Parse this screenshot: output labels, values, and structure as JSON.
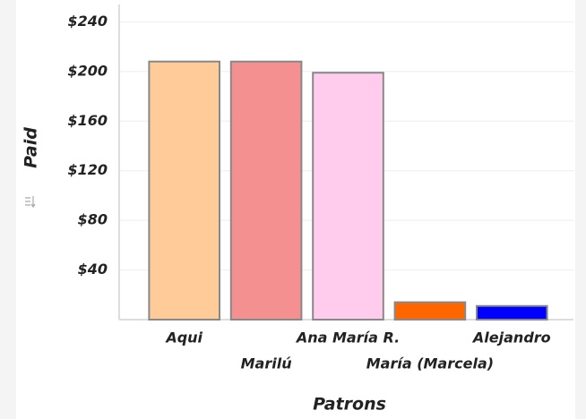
{
  "chart_data": {
    "type": "bar",
    "x_label": "Patrons",
    "y_label": "Paid",
    "categories": [
      "Aqui",
      "Marilú",
      "Ana María R.",
      "María (Marcela)",
      "Alejandro"
    ],
    "values": [
      208,
      208,
      199,
      14,
      11
    ],
    "colors": [
      "#ffcc99",
      "#f49090",
      "#ffccee",
      "#ff6600",
      "#0000ff"
    ],
    "ylim": [
      0,
      254
    ],
    "yticks": [
      {
        "value": 40,
        "label": "$40"
      },
      {
        "value": 80,
        "label": "$80"
      },
      {
        "value": 120,
        "label": "$120"
      },
      {
        "value": 160,
        "label": "$160"
      },
      {
        "value": 200,
        "label": "$200"
      },
      {
        "value": 240,
        "label": "$240"
      }
    ],
    "grid": true
  }
}
